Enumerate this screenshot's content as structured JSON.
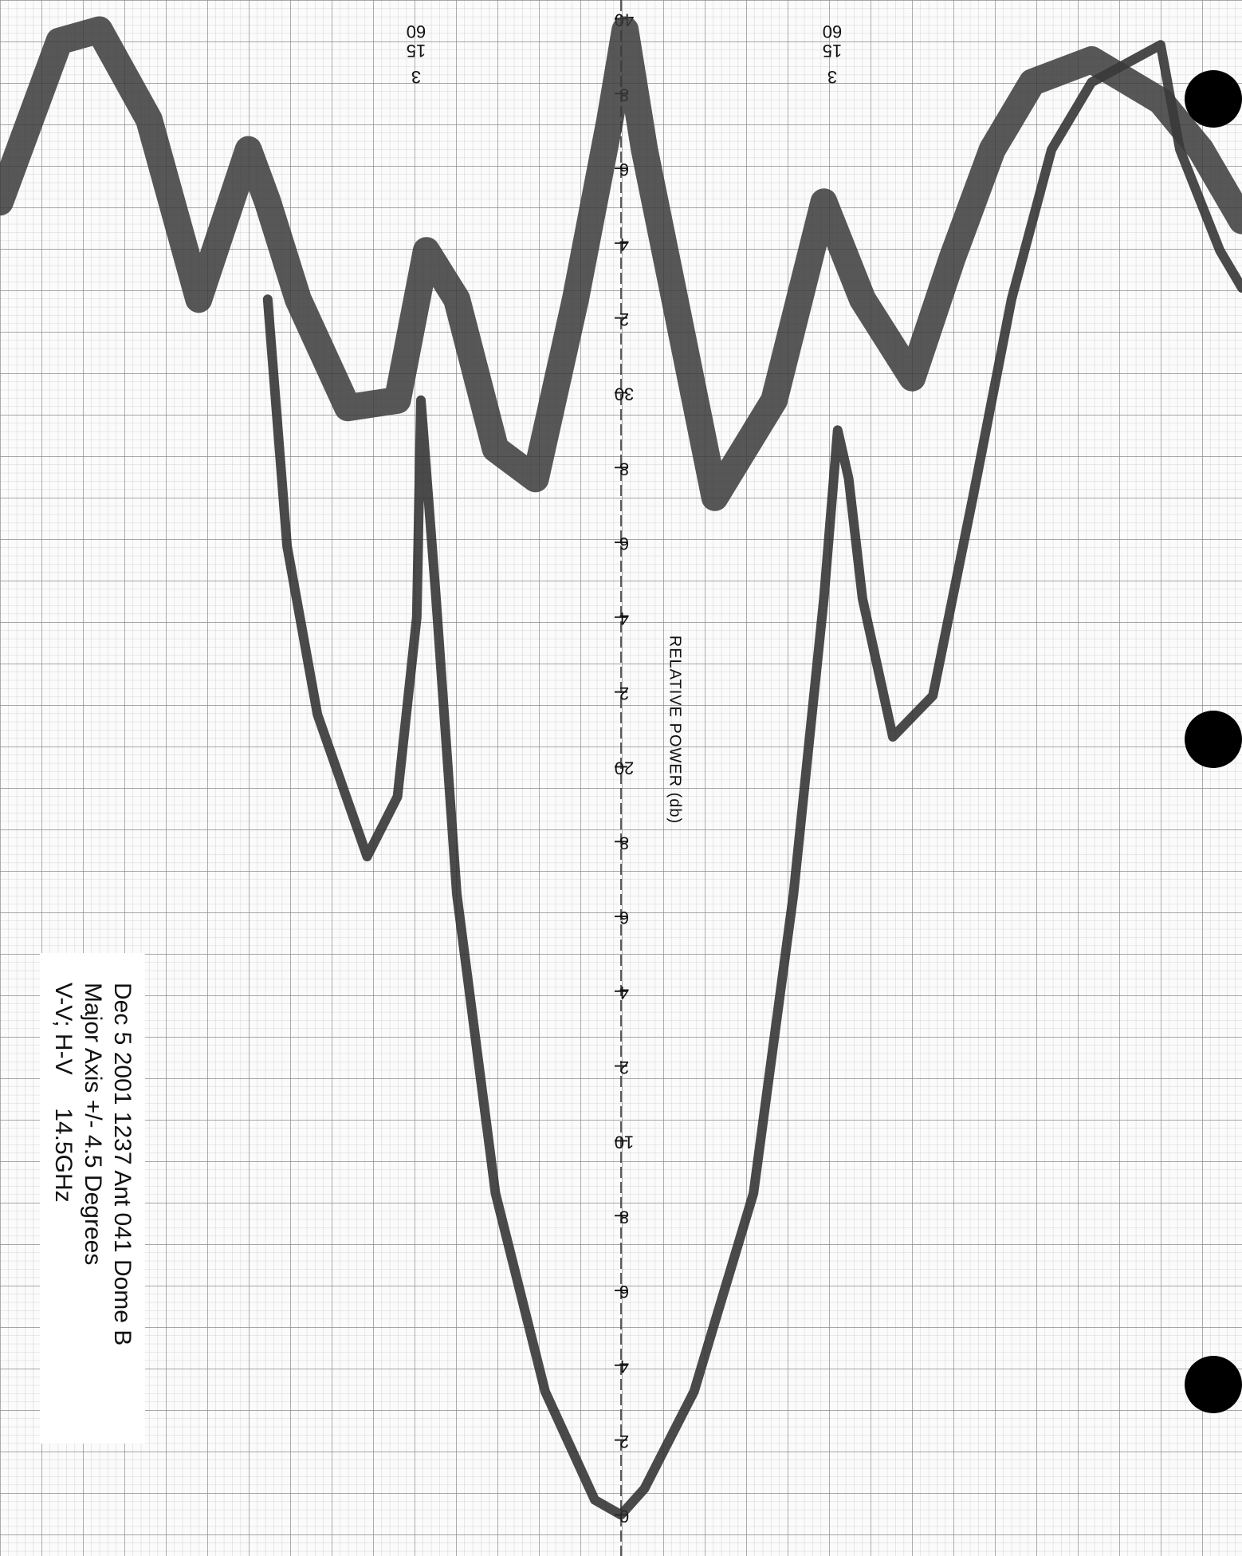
{
  "chart_data": {
    "type": "line",
    "y_label": "RELATIVE POWER (db)",
    "notes": [
      "Dec 5 2001 1237 Ant 041 Dome B",
      "Major Axis +/- 4.5 Degrees",
      "V-V; H-V     14.5GHz"
    ],
    "annotations": [
      "60",
      "15",
      "3",
      "60",
      "15",
      "3"
    ],
    "xlim": [
      -4.5,
      4.5
    ],
    "ylim": [
      -1.1,
      40.5
    ],
    "yticks": [
      0,
      2,
      4,
      6,
      8,
      10,
      {
        "value": 12,
        "label": "2"
      },
      {
        "value": 14,
        "label": "4"
      },
      {
        "value": 16,
        "label": "6"
      },
      {
        "value": 18,
        "label": "8"
      },
      20,
      {
        "value": 22,
        "label": "2"
      },
      {
        "value": 24,
        "label": "4"
      },
      {
        "value": 26,
        "label": "6"
      },
      {
        "value": 28,
        "label": "8"
      },
      30,
      {
        "value": 32,
        "label": "2"
      },
      {
        "value": 34,
        "label": "4"
      },
      {
        "value": 36,
        "label": "6"
      },
      {
        "value": 38,
        "label": "8"
      },
      40
    ],
    "series": [
      {
        "color": "#2a2a2a",
        "x": [
          -2.56,
          -2.42,
          -2.2,
          -1.84,
          -1.62,
          -1.48,
          -1.45,
          -1.34,
          -1.19,
          -0.91,
          -0.55,
          -0.19,
          0,
          0.17,
          0.53,
          0.96,
          1.25,
          1.47,
          1.57,
          1.65,
          1.75,
          1.97,
          2.26,
          2.55,
          2.83,
          3.12,
          3.41,
          3.91,
          4.05,
          4.34,
          4.5
        ],
        "values": [
          32.5,
          25.9,
          21.4,
          17.6,
          19.2,
          24.0,
          29.8,
          24.5,
          16.6,
          8.6,
          3.3,
          0.4,
          0,
          0.7,
          3.3,
          8.6,
          16.6,
          24.5,
          29.0,
          27.7,
          24.5,
          20.8,
          21.9,
          27.2,
          32.5,
          36.5,
          38.3,
          39.3,
          36.5,
          33.8,
          32.8
        ]
      },
      {
        "color": "#3a3a3a",
        "x": [
          -4.5,
          -4.07,
          -3.78,
          -3.42,
          -3.06,
          -2.7,
          -2.56,
          -2.34,
          -1.98,
          -1.62,
          -1.41,
          -1.19,
          -0.91,
          -0.62,
          -0.33,
          -0.08,
          0.03,
          0.17,
          0.39,
          0.68,
          1.11,
          1.47,
          1.75,
          2.11,
          2.4,
          2.69,
          2.98,
          3.41,
          3.91,
          4.2,
          4.5
        ],
        "values": [
          35.1,
          39.4,
          39.7,
          37.3,
          32.5,
          36.5,
          35.1,
          32.5,
          29.6,
          29.8,
          33.8,
          32.5,
          28.5,
          27.7,
          32.5,
          37.3,
          39.7,
          36.5,
          32.5,
          27.2,
          29.8,
          35.1,
          32.5,
          30.4,
          33.6,
          36.5,
          38.3,
          38.9,
          37.8,
          36.5,
          34.6
        ]
      }
    ]
  }
}
